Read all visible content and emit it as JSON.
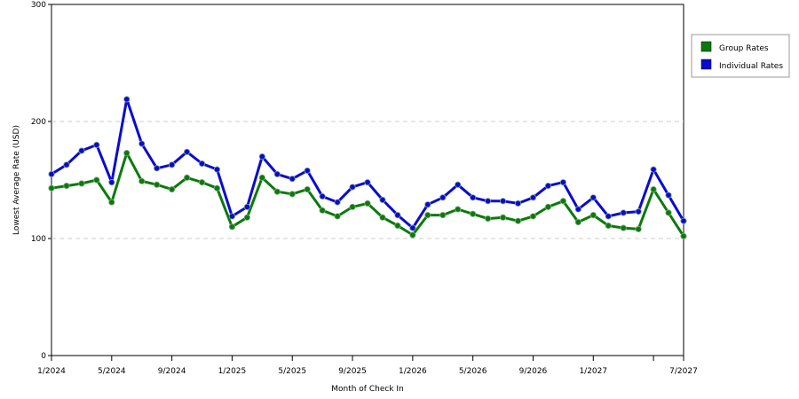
{
  "chart_data": {
    "type": "line",
    "title": "",
    "xlabel": "Month of Check In",
    "ylabel": "Lowest Average Rate (USD)",
    "ylim": [
      0,
      300
    ],
    "y_ticks": [
      0,
      100,
      200,
      300
    ],
    "y_tick_labels": [
      "0",
      "100",
      "200",
      "300"
    ],
    "grid": "horizontal-dashed",
    "legend_position": "right",
    "x_ticks": [
      "1/2024",
      "5/2024",
      "9/2024",
      "1/2025",
      "5/2025",
      "9/2025",
      "1/2026",
      "5/2026",
      "9/2026",
      "1/2027",
      "",
      "7/2027"
    ],
    "x": [
      "1/2024",
      "2/2024",
      "3/2024",
      "4/2024",
      "5/2024",
      "6/2024",
      "7/2024",
      "8/2024",
      "9/2024",
      "10/2024",
      "11/2024",
      "12/2024",
      "1/2025",
      "2/2025",
      "3/2025",
      "4/2025",
      "5/2025",
      "6/2025",
      "7/2025",
      "8/2025",
      "9/2025",
      "10/2025",
      "11/2025",
      "12/2025",
      "1/2026",
      "2/2026",
      "3/2026",
      "4/2026",
      "5/2026",
      "6/2026",
      "7/2026",
      "8/2026",
      "9/2026",
      "10/2026",
      "11/2026",
      "12/2026",
      "1/2027",
      "2/2027",
      "3/2027",
      "4/2027",
      "5/2027",
      "6/2027",
      "7/2027"
    ],
    "series": [
      {
        "name": "Group Rates",
        "color": "#0b7a0b",
        "values": [
          143,
          145,
          147,
          150,
          131,
          173,
          149,
          146,
          142,
          152,
          148,
          143,
          110,
          118,
          152,
          140,
          138,
          142,
          124,
          119,
          127,
          130,
          118,
          111,
          103,
          120,
          120,
          125,
          121,
          117,
          118,
          115,
          119,
          127,
          132,
          114,
          120,
          111,
          109,
          108,
          142,
          122,
          102
        ]
      },
      {
        "name": "Individual Rates",
        "color": "#0a0ad2",
        "values": [
          155,
          163,
          175,
          180,
          148,
          219,
          181,
          160,
          163,
          174,
          164,
          159,
          119,
          127,
          170,
          155,
          151,
          158,
          136,
          131,
          144,
          148,
          133,
          120,
          109,
          129,
          135,
          146,
          135,
          132,
          132,
          130,
          135,
          145,
          148,
          125,
          135,
          119,
          122,
          123,
          159,
          137,
          115
        ]
      }
    ]
  }
}
